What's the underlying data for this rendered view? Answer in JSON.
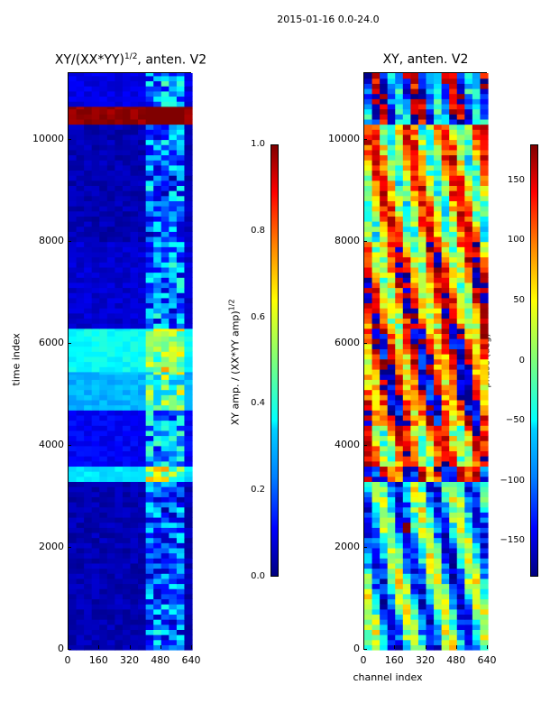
{
  "figure_title": "2015-01-16 0.0-24.0",
  "chart_data": [
    {
      "type": "heatmap",
      "title": "XY/(XX*YY)^1/2, anten. V2",
      "title_main": "XY/(XX*YY)",
      "title_sup": "1/2",
      "title_tail": ", anten. V2",
      "xlabel": "",
      "ylabel": "time index",
      "xlim": [
        0,
        640
      ],
      "ylim": [
        0,
        11300
      ],
      "xticks": [
        0,
        160,
        320,
        480,
        640
      ],
      "yticks": [
        0,
        2000,
        4000,
        6000,
        8000,
        10000
      ],
      "colormap": "jet",
      "colorbar": {
        "label": "XY amp. / (XX*YY amp)^1/2",
        "label_main": "XY amp. / (XX*YY amp)",
        "label_sup": "1/2",
        "range": [
          0.0,
          1.0
        ],
        "ticks": [
          "0.0",
          "0.2",
          "0.4",
          "0.6",
          "0.8",
          "1.0"
        ]
      },
      "description_bands": [
        {
          "t_start": 0,
          "t_end": 3300,
          "level": 0.05
        },
        {
          "t_start": 3300,
          "t_end": 3600,
          "level": 0.35
        },
        {
          "t_start": 3600,
          "t_end": 4700,
          "level": 0.12
        },
        {
          "t_start": 4700,
          "t_end": 5450,
          "level": 0.3
        },
        {
          "t_start": 5450,
          "t_end": 6300,
          "level": 0.38
        },
        {
          "t_start": 6300,
          "t_end": 8000,
          "level": 0.08
        },
        {
          "t_start": 8000,
          "t_end": 10300,
          "level": 0.05
        },
        {
          "t_start": 10300,
          "t_end": 10650,
          "level": 0.98
        },
        {
          "t_start": 10650,
          "t_end": 11300,
          "level": 0.1
        }
      ]
    },
    {
      "type": "heatmap",
      "title": "XY, anten. V2",
      "xlabel": "channel index",
      "ylabel": "",
      "xlim": [
        0,
        640
      ],
      "ylim": [
        0,
        11300
      ],
      "xticks": [
        0,
        160,
        320,
        480,
        640
      ],
      "yticks": [
        0,
        2000,
        4000,
        6000,
        8000,
        10000
      ],
      "colormap": "jet",
      "colorbar": {
        "label": "phase (deg)",
        "range": [
          -180,
          180
        ],
        "ticks": [
          "−150",
          "−100",
          "−50",
          "0",
          "50",
          "100",
          "150"
        ]
      },
      "description_bands": [
        {
          "t_start": 0,
          "t_end": 3300,
          "level": 0.35
        },
        {
          "t_start": 3300,
          "t_end": 3600,
          "level": 0.95
        },
        {
          "t_start": 3600,
          "t_end": 4400,
          "level": 0.7
        },
        {
          "t_start": 4400,
          "t_end": 6300,
          "level": 0.88
        },
        {
          "t_start": 6300,
          "t_end": 8000,
          "level": 0.75
        },
        {
          "t_start": 8000,
          "t_end": 10300,
          "level": 0.65
        },
        {
          "t_start": 10300,
          "t_end": 11300,
          "level": 0.15
        }
      ]
    }
  ]
}
